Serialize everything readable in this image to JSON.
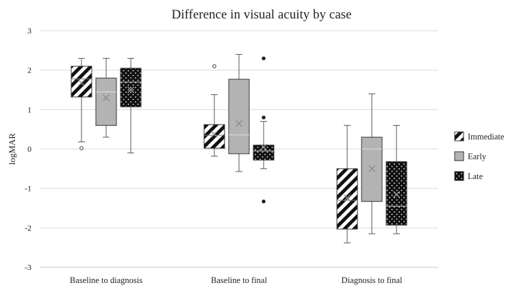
{
  "chart_data": {
    "type": "box",
    "title": "Difference in visual acuity by case",
    "xlabel": "",
    "ylabel": "logMAR",
    "ylim": [
      -3,
      3
    ],
    "yticks": [
      -3,
      -2,
      -1,
      0,
      1,
      2,
      3
    ],
    "grid": true,
    "legend_position": "right",
    "categories": [
      "Baseline to diagnosis",
      "Baseline to final",
      "Diagnosis to final"
    ],
    "series": [
      {
        "name": "Immediate",
        "pattern": "diagonal-stripes",
        "boxes": [
          {
            "min": 0.18,
            "q1": 1.32,
            "median": 1.78,
            "q3": 2.1,
            "max": 2.3,
            "mean": 1.68,
            "outliers": [
              0.02
            ]
          },
          {
            "min": -0.18,
            "q1": 0.02,
            "median": 0.35,
            "q3": 0.62,
            "max": 1.38,
            "mean": 0.38,
            "outliers": [
              2.1
            ]
          },
          {
            "min": -2.38,
            "q1": -2.03,
            "median": -1.3,
            "q3": -0.5,
            "max": 0.6,
            "mean": -1.24,
            "outliers": []
          }
        ]
      },
      {
        "name": "Early",
        "pattern": "solid-gray",
        "boxes": [
          {
            "min": 0.3,
            "q1": 0.6,
            "median": 1.45,
            "q3": 1.8,
            "max": 2.3,
            "mean": 1.3,
            "outliers": []
          },
          {
            "min": -0.57,
            "q1": -0.12,
            "median": 0.36,
            "q3": 1.77,
            "max": 2.4,
            "mean": 0.65,
            "outliers": []
          },
          {
            "min": -2.15,
            "q1": -1.33,
            "median": 0.0,
            "q3": 0.3,
            "max": 1.4,
            "mean": -0.5,
            "outliers": []
          }
        ]
      },
      {
        "name": "Late",
        "pattern": "dotted-black",
        "boxes": [
          {
            "min": -0.1,
            "q1": 1.07,
            "median": 1.7,
            "q3": 2.05,
            "max": 2.3,
            "mean": 1.5,
            "outliers": []
          },
          {
            "min": -0.5,
            "q1": -0.28,
            "median": -0.05,
            "q3": 0.1,
            "max": 0.7,
            "mean": 0.05,
            "outliers": [
              2.3,
              0.8,
              -1.33
            ]
          },
          {
            "min": -2.15,
            "q1": -1.93,
            "median": -1.45,
            "q3": -0.32,
            "max": 0.6,
            "mean": -1.15,
            "outliers": []
          }
        ]
      }
    ]
  },
  "colors": {
    "gridline": "#d9d9d9",
    "axis": "#c8c8c8",
    "box_stroke": "#333333",
    "early_fill": "#b3b3b3",
    "late_fill": "#111111",
    "stripe_dark": "#111111",
    "mean_marker": "#8c8c8c"
  }
}
